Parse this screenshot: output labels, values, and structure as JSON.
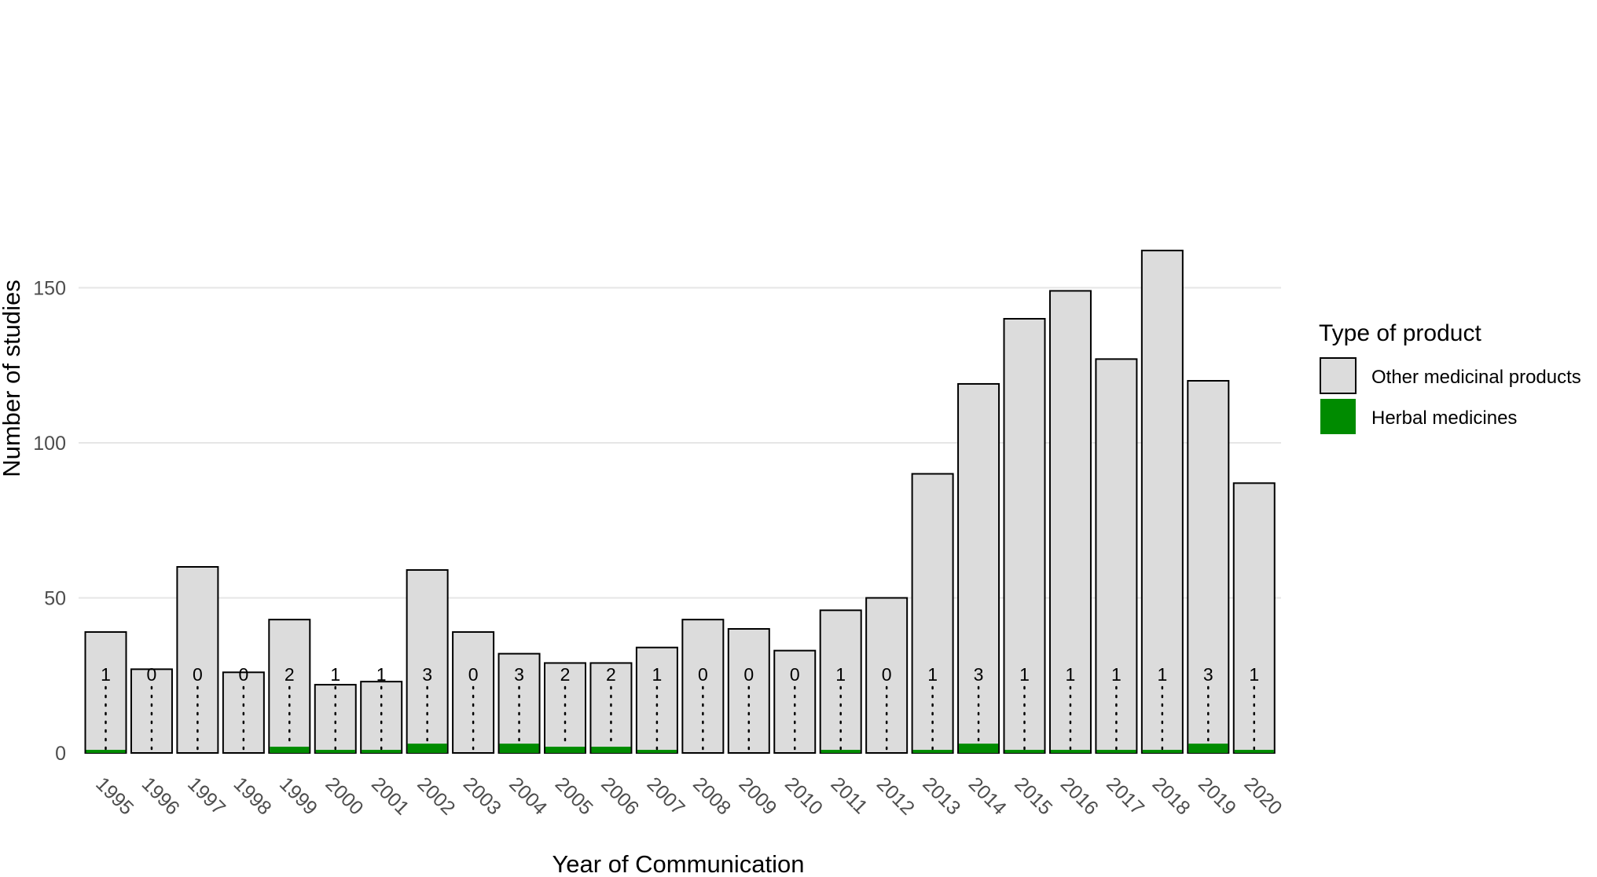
{
  "chart_data": {
    "type": "bar",
    "stacked": true,
    "xlabel": "Year of Communication",
    "ylabel": "Number of studies",
    "ylim": [
      0,
      160
    ],
    "yticks": [
      0,
      50,
      100,
      150
    ],
    "grid": "horizontal",
    "legend_placement": "right",
    "legend_title": "Type of product",
    "categories": [
      "1995",
      "1996",
      "1997",
      "1998",
      "1999",
      "2000",
      "2001",
      "2002",
      "2003",
      "2004",
      "2005",
      "2006",
      "2007",
      "2008",
      "2009",
      "2010",
      "2011",
      "2012",
      "2013",
      "2014",
      "2015",
      "2016",
      "2017",
      "2018",
      "2019",
      "2020"
    ],
    "series": [
      {
        "name": "Herbal medicines",
        "color": "#008b00",
        "values": [
          1,
          0,
          0,
          0,
          2,
          1,
          1,
          3,
          0,
          3,
          2,
          2,
          1,
          0,
          0,
          0,
          1,
          0,
          1,
          3,
          1,
          1,
          1,
          1,
          3,
          1
        ]
      },
      {
        "name": "Other medicinal products",
        "color": "#dcdcdc",
        "values": [
          38,
          27,
          60,
          26,
          41,
          21,
          22,
          56,
          39,
          29,
          27,
          27,
          33,
          43,
          40,
          33,
          45,
          50,
          89,
          116,
          139,
          148,
          126,
          161,
          117,
          86
        ]
      }
    ],
    "totals": [
      39,
      27,
      60,
      26,
      43,
      22,
      23,
      59,
      39,
      32,
      29,
      29,
      34,
      43,
      40,
      33,
      46,
      50,
      90,
      119,
      140,
      149,
      127,
      162,
      120,
      87
    ],
    "bar_labels": [
      "1",
      "0",
      "0",
      "0",
      "2",
      "1",
      "1",
      "3",
      "0",
      "3",
      "2",
      "2",
      "1",
      "0",
      "0",
      "0",
      "1",
      "0",
      "1",
      "3",
      "1",
      "1",
      "1",
      "1",
      "3",
      "1"
    ]
  }
}
